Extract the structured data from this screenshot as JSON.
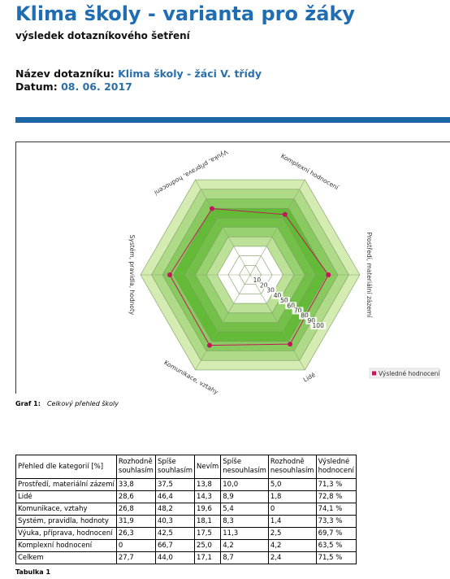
{
  "header": {
    "title": "Klima školy - varianta pro žáky",
    "subtitle": "výsledek dotazníkového šetření",
    "survey_label": "Název dotazníku:",
    "survey_value": "Klima školy - žáci V. třídy",
    "date_label": "Datum:",
    "date_value": "08. 06. 2017"
  },
  "chart_data": {
    "type": "radar",
    "axes": [
      "Komplexní hodnocení",
      "Prostředí, materiální zázemí",
      "Lidé",
      "Komunikace, vztahy",
      "Systém, pravidla, hodnoty",
      "Výuka, příprava, hodnocení"
    ],
    "ticks": [
      "10",
      "20",
      "30",
      "40",
      "50",
      "60",
      "70",
      "80",
      "90",
      "100"
    ],
    "range": [
      0,
      100
    ],
    "series": [
      {
        "name": "Výsledné hodnocení",
        "values": [
          63.5,
          71.3,
          72.8,
          74.1,
          73.3,
          69.7
        ],
        "color": "#c0185a"
      }
    ],
    "legend_position": "right",
    "fill_colors": [
      "#c9e6a6",
      "#58b52a"
    ]
  },
  "chart_caption": {
    "label": "Graf 1:",
    "text": "Celkový přehled školy"
  },
  "table": {
    "headers": [
      [
        "Přehled dle kategorií [%]"
      ],
      [
        "Rozhodně",
        "souhlasím"
      ],
      [
        "Spíše",
        "souhlasím"
      ],
      [
        "Nevím"
      ],
      [
        "Spíše",
        "nesouhlasím"
      ],
      [
        "Rozhodně",
        "nesouhlasím"
      ],
      [
        "Výsledné",
        "hodnocení"
      ]
    ],
    "rows": [
      [
        "Prostředí, materiální zázemí",
        "33,8",
        "37,5",
        "13,8",
        "10,0",
        "5,0",
        "71,3 %"
      ],
      [
        "Lidé",
        "28,6",
        "46,4",
        "14,3",
        "8,9",
        "1,8",
        "72,8 %"
      ],
      [
        "Komunikace, vztahy",
        "26,8",
        "48,2",
        "19,6",
        "5,4",
        "0",
        "74,1 %"
      ],
      [
        "Systém, pravidla, hodnoty",
        "31,9",
        "40,3",
        "18,1",
        "8,3",
        "1,4",
        "73,3 %"
      ],
      [
        "Výuka, příprava, hodnocení",
        "26,3",
        "42,5",
        "17,5",
        "11,3",
        "2,5",
        "69,7 %"
      ],
      [
        "Komplexní hodnocení",
        "0",
        "66,7",
        "25,0",
        "4,2",
        "4,2",
        "63,5 %"
      ],
      [
        "Celkem",
        "27,7",
        "44,0",
        "17,1",
        "8,7",
        "2,4",
        "71,5 %"
      ]
    ],
    "caption": "Tabulka 1"
  }
}
